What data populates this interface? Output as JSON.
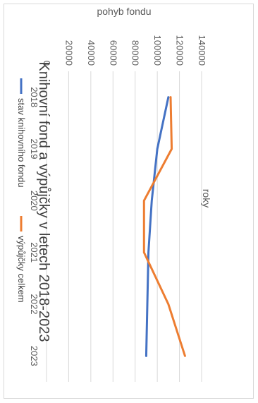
{
  "chart_data": {
    "type": "line",
    "title": "Knihovní fond a výpůjčky v letech 2018-2023",
    "xlabel": "roky",
    "ylabel": "pohyb fondu",
    "x": [
      "2018",
      "2019",
      "2020",
      "2021",
      "2022",
      "2023"
    ],
    "ylim": [
      0,
      140000
    ],
    "yticks": [
      "0",
      "20000",
      "40000",
      "60000",
      "80000",
      "100000",
      "120000",
      "140000"
    ],
    "grid": true,
    "legend_position": "bottom",
    "orientation": "rotated 90° clockwise",
    "series": [
      {
        "name": "stav knihovního fondu",
        "color": "#4472c4",
        "values": [
          110000,
          100000,
          95000,
          92000,
          91000,
          90000
        ]
      },
      {
        "name": "výpůjčky celkem",
        "color": "#ed7d31",
        "values": [
          112000,
          113000,
          88000,
          88000,
          110000,
          125000
        ]
      }
    ]
  }
}
